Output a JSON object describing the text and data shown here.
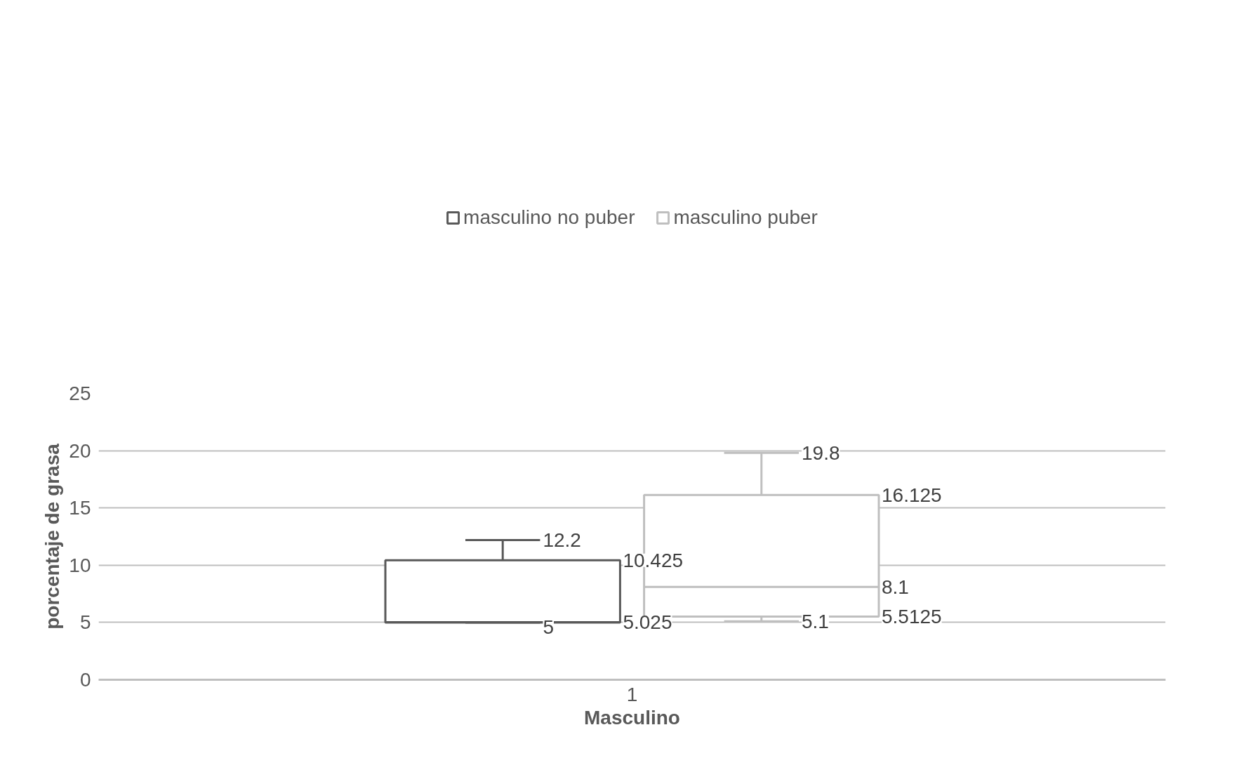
{
  "chart_data": {
    "type": "box",
    "categories": [
      "1"
    ],
    "xlabel": "Masculino",
    "ylabel": "porcentaje de grasa",
    "ylim": [
      0,
      25
    ],
    "yticks": [
      0,
      5,
      10,
      15,
      20,
      25
    ],
    "grid": "y",
    "legend": "top",
    "series": [
      {
        "name": "masculino no puber",
        "color": "#595959",
        "boxes": [
          {
            "low": 5,
            "q1": 5,
            "median": 5.025,
            "q3": 10.425,
            "high": 12.2
          }
        ]
      },
      {
        "name": "masculino puber",
        "color": "#bfbfbf",
        "boxes": [
          {
            "low": 5.1,
            "q1": 5.5125,
            "median": 8.1,
            "q3": 16.125,
            "high": 19.8
          }
        ]
      }
    ],
    "annotations": [
      "12.2",
      "10.425",
      "5.025",
      "5",
      "19.8",
      "16.125",
      "8.1",
      "5.5125",
      "5.1"
    ]
  }
}
